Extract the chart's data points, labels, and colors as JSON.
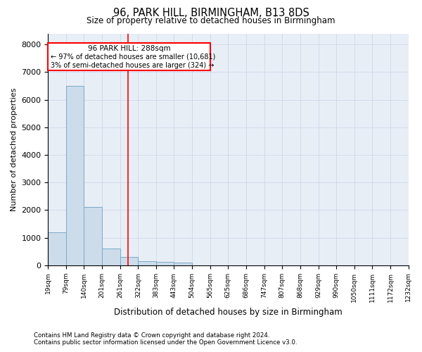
{
  "title": "96, PARK HILL, BIRMINGHAM, B13 8DS",
  "subtitle": "Size of property relative to detached houses in Birmingham",
  "xlabel": "Distribution of detached houses by size in Birmingham",
  "ylabel": "Number of detached properties",
  "footnote1": "Contains HM Land Registry data © Crown copyright and database right 2024.",
  "footnote2": "Contains public sector information licensed under the Open Government Licence v3.0.",
  "annotation_title": "96 PARK HILL: 288sqm",
  "annotation_line1": "← 97% of detached houses are smaller (10,681)",
  "annotation_line2": "3% of semi-detached houses are larger (324) →",
  "property_size": 288,
  "bar_color": "#cddceb",
  "bar_edge_color": "#7aaac8",
  "vline_color": "red",
  "grid_color": "#d0d8e8",
  "background_color": "#e8eef6",
  "bins": [
    19,
    79,
    140,
    201,
    261,
    322,
    383,
    443,
    504,
    565,
    625,
    686,
    747,
    807,
    868,
    929,
    990,
    1050,
    1111,
    1172,
    1232
  ],
  "bar_heights": [
    1200,
    6500,
    2100,
    600,
    290,
    160,
    130,
    90,
    0,
    0,
    0,
    0,
    0,
    0,
    0,
    0,
    0,
    0,
    0,
    0
  ],
  "ylim": [
    0,
    8400
  ],
  "yticks": [
    0,
    1000,
    2000,
    3000,
    4000,
    5000,
    6000,
    7000,
    8000
  ]
}
